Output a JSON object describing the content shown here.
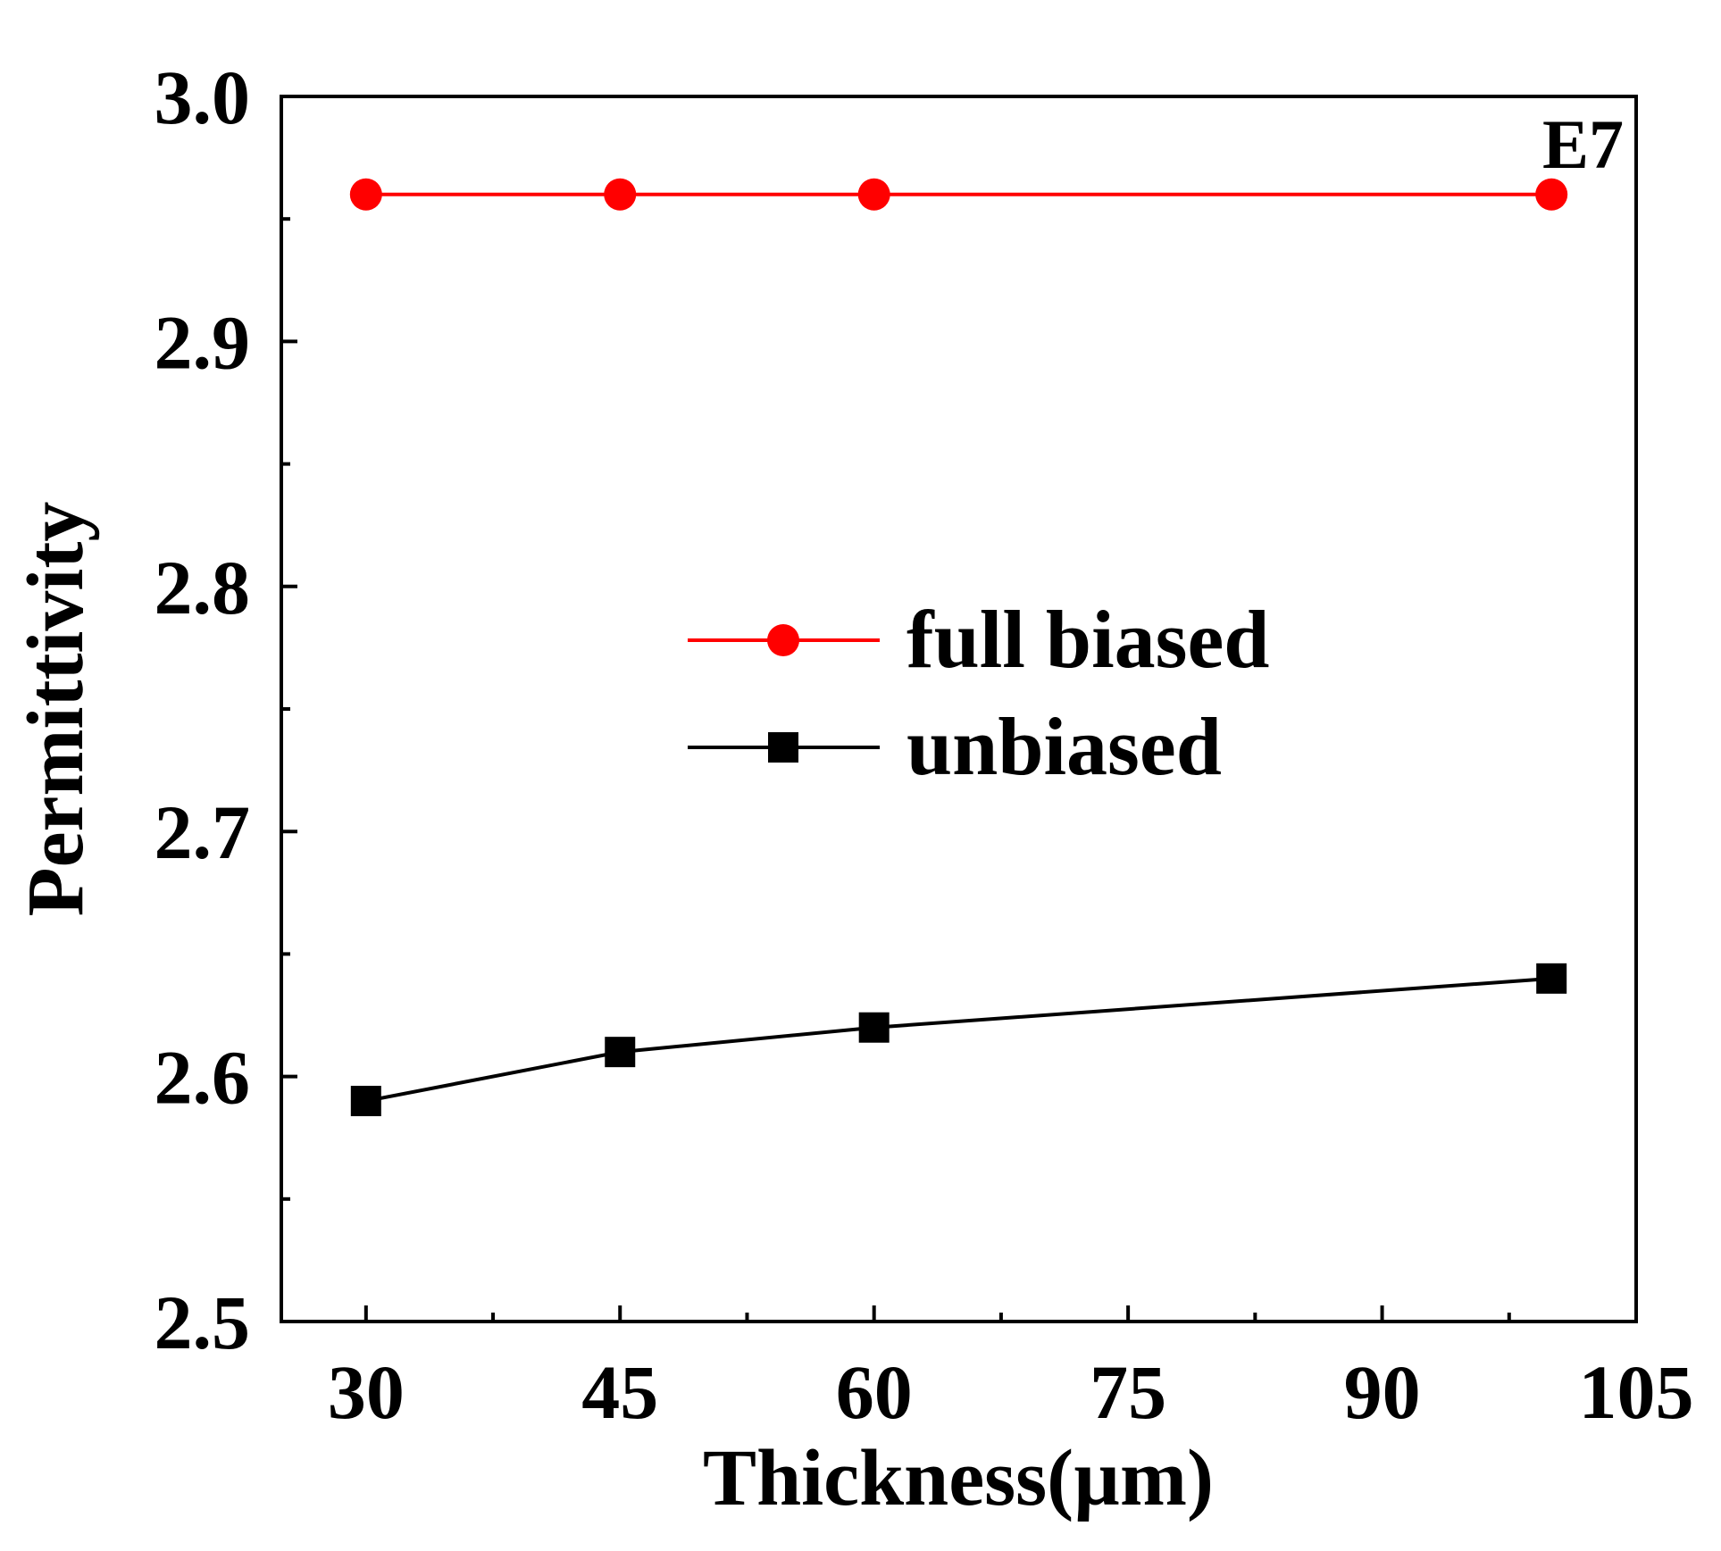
{
  "chart_data": {
    "type": "line",
    "title": "",
    "xlabel": "Thickness(µm)",
    "ylabel": "Permittivity",
    "xlim": [
      25,
      105
    ],
    "ylim": [
      2.5,
      3.0
    ],
    "xticks": [
      30,
      45,
      60,
      75,
      90,
      105
    ],
    "yticks": [
      2.5,
      2.6,
      2.7,
      2.8,
      2.9,
      3.0
    ],
    "xtick_labels": [
      "30",
      "45",
      "60",
      "75",
      "90",
      "105"
    ],
    "ytick_labels": [
      "2.5",
      "2.6",
      "2.7",
      "2.8",
      "2.9",
      "3.0"
    ],
    "annotation": "E7",
    "legend_position": "center",
    "series": [
      {
        "name": "full biased",
        "color": "#ff0000",
        "marker": "circle",
        "x": [
          30,
          45,
          60,
          100
        ],
        "values": [
          2.96,
          2.96,
          2.96,
          2.96
        ]
      },
      {
        "name": "unbiased",
        "color": "#000000",
        "marker": "square",
        "x": [
          30,
          45,
          60,
          100
        ],
        "values": [
          2.59,
          2.61,
          2.62,
          2.64
        ]
      }
    ]
  }
}
